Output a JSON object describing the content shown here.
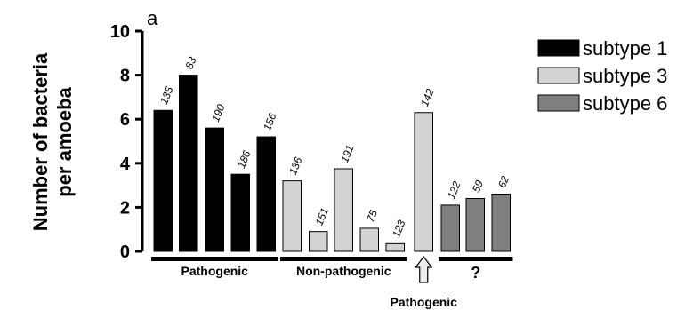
{
  "panel_letter": "a",
  "chart_data": {
    "type": "bar",
    "title": "",
    "xlabel": "",
    "ylabel_lines": [
      "Number of bacteria",
      "per amoeba"
    ],
    "ylim": [
      0,
      10
    ],
    "yticks": [
      0,
      2,
      4,
      6,
      8,
      10
    ],
    "grid": false,
    "legend": {
      "placement": "top-right",
      "entries": [
        {
          "label": "subtype 1",
          "color": "#000000"
        },
        {
          "label": "subtype 3",
          "color": "#d3d3d3"
        },
        {
          "label": "subtype 6",
          "color": "#7f7f7f"
        }
      ]
    },
    "bars": [
      {
        "subtype": "subtype 1",
        "value": 6.4,
        "label": "135"
      },
      {
        "subtype": "subtype 1",
        "value": 8.0,
        "label": "83"
      },
      {
        "subtype": "subtype 1",
        "value": 5.6,
        "label": "190"
      },
      {
        "subtype": "subtype 1",
        "value": 3.5,
        "label": "186"
      },
      {
        "subtype": "subtype 1",
        "value": 5.2,
        "label": "156"
      },
      {
        "subtype": "subtype 3",
        "value": 3.2,
        "label": "136"
      },
      {
        "subtype": "subtype 3",
        "value": 0.9,
        "label": "151"
      },
      {
        "subtype": "subtype 3",
        "value": 3.75,
        "label": "191"
      },
      {
        "subtype": "subtype 3",
        "value": 1.05,
        "label": "75"
      },
      {
        "subtype": "subtype 3",
        "value": 0.35,
        "label": "123"
      },
      {
        "subtype": "subtype 3",
        "value": 6.3,
        "label": "142"
      },
      {
        "subtype": "subtype 6",
        "value": 2.1,
        "label": "122"
      },
      {
        "subtype": "subtype 6",
        "value": 2.4,
        "label": "59"
      },
      {
        "subtype": "subtype 6",
        "value": 2.6,
        "label": "62"
      }
    ],
    "groups": [
      {
        "label": "Pathogenic",
        "bars": [
          0,
          4
        ]
      },
      {
        "label": "Non-pathogenic",
        "bars": [
          5,
          9
        ]
      },
      {
        "label": "?",
        "bars": [
          11,
          13
        ]
      }
    ],
    "arrow_annotation": {
      "label": "Pathogenic",
      "bar": 10
    }
  }
}
